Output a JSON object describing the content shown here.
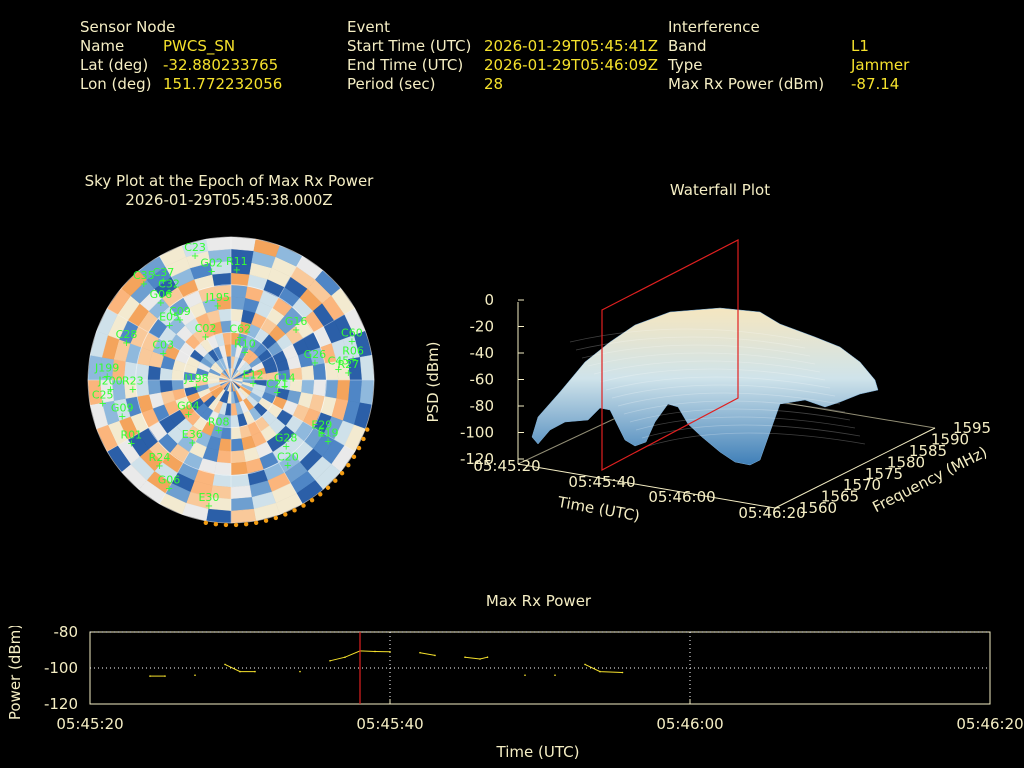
{
  "header": {
    "sensor": {
      "heading": "Sensor Node",
      "rows": [
        {
          "label": "Name",
          "value": "PWCS_SN"
        },
        {
          "label": "Lat (deg)",
          "value": "-32.880233765"
        },
        {
          "label": "Lon (deg)",
          "value": "151.772232056"
        }
      ]
    },
    "event": {
      "heading": "Event",
      "rows": [
        {
          "label": "Start Time (UTC)",
          "value": "2026-01-29T05:45:41Z"
        },
        {
          "label": "End Time (UTC)",
          "value": "2026-01-29T05:46:09Z"
        },
        {
          "label": "Period (sec)",
          "value": "28"
        }
      ]
    },
    "interference": {
      "heading": "Interference",
      "rows": [
        {
          "label": "Band",
          "value": "L1"
        },
        {
          "label": "Type",
          "value": "Jammer"
        },
        {
          "label": "Max Rx Power (dBm)",
          "value": "-87.14"
        }
      ]
    }
  },
  "sky_plot": {
    "title_line1": "Sky Plot at the Epoch of Max Rx Power",
    "title_line2": "2026-01-29T05:45:38.000Z",
    "satellites": [
      {
        "id": "C23",
        "az": 344,
        "el": 8
      },
      {
        "id": "C37",
        "az": 326,
        "el": 14
      },
      {
        "id": "C35",
        "az": 318,
        "el": 8
      },
      {
        "id": "C32",
        "az": 325,
        "el": 22
      },
      {
        "id": "G02",
        "az": 350,
        "el": 20
      },
      {
        "id": "R11",
        "az": 3,
        "el": 20
      },
      {
        "id": "G06",
        "az": 318,
        "el": 24
      },
      {
        "id": "E05",
        "az": 312,
        "el": 38
      },
      {
        "id": "C09",
        "az": 320,
        "el": 40
      },
      {
        "id": "J195",
        "az": 350,
        "el": 42
      },
      {
        "id": "C28",
        "az": 290,
        "el": 20
      },
      {
        "id": "C03",
        "az": 292,
        "el": 44
      },
      {
        "id": "C02",
        "az": 330,
        "el": 58
      },
      {
        "id": "G16",
        "az": 52,
        "el": 38
      },
      {
        "id": "C62",
        "az": 12,
        "el": 62
      },
      {
        "id": "R10",
        "az": 26,
        "el": 70
      },
      {
        "id": "C60",
        "az": 72,
        "el": 10
      },
      {
        "id": "R06",
        "az": 80,
        "el": 12
      },
      {
        "id": "J199",
        "az": 272,
        "el": 12
      },
      {
        "id": "J200",
        "az": 266,
        "el": 14
      },
      {
        "id": "R23",
        "az": 265,
        "el": 28
      },
      {
        "id": "G26",
        "az": 78,
        "el": 36
      },
      {
        "id": "C45",
        "az": 84,
        "el": 22
      },
      {
        "id": "R27",
        "az": 86,
        "el": 16
      },
      {
        "id": "E12",
        "az": 96,
        "el": 76
      },
      {
        "id": "C14",
        "az": 96,
        "el": 56
      },
      {
        "id": "C21",
        "az": 104,
        "el": 60
      },
      {
        "id": "J198",
        "az": 260,
        "el": 68
      },
      {
        "id": "C25",
        "az": 260,
        "el": 8
      },
      {
        "id": "G09",
        "az": 252,
        "el": 18
      },
      {
        "id": "G04",
        "az": 232,
        "el": 56
      },
      {
        "id": "E29",
        "az": 120,
        "el": 24
      },
      {
        "id": "E19",
        "az": 122,
        "el": 18
      },
      {
        "id": "G28",
        "az": 140,
        "el": 36
      },
      {
        "id": "C20",
        "az": 146,
        "el": 26
      },
      {
        "id": "R01",
        "az": 238,
        "el": 16
      },
      {
        "id": "E36",
        "az": 212,
        "el": 44
      },
      {
        "id": "R08",
        "az": 194,
        "el": 58
      },
      {
        "id": "R24",
        "az": 220,
        "el": 20
      },
      {
        "id": "G06b",
        "label": "G06",
        "az": 210,
        "el": 12
      },
      {
        "id": "E30",
        "az": 190,
        "el": 10
      }
    ]
  },
  "waterfall": {
    "title": "Waterfall Plot",
    "zlabel": "PSD (dBm)",
    "xlabel": "Time (UTC)",
    "ylabel": "Frequency (MHz)",
    "z_ticks": [
      "0",
      "-20",
      "-40",
      "-60",
      "-80",
      "-100",
      "-120"
    ],
    "x_ticks": [
      "05:45:20",
      "05:45:40",
      "05:46:00",
      "05:46:20"
    ],
    "y_ticks": [
      "1560",
      "1565",
      "1570",
      "1575",
      "1580",
      "1585",
      "1590",
      "1595"
    ]
  },
  "chart_data": {
    "type": "line",
    "title": "Max Rx Power",
    "xlabel": "Time (UTC)",
    "ylabel": "Power (dBm)",
    "x_ticks": [
      "05:45:20",
      "05:45:40",
      "05:46:00",
      "05:46:20"
    ],
    "y_ticks": [
      "-80",
      "-100",
      "-120"
    ],
    "xlim_sec": [
      0,
      60
    ],
    "ylim": [
      -120,
      -80
    ],
    "marker_sec": 18,
    "series": [
      {
        "values": [
          [
            4,
            -104.5
          ],
          [
            5,
            -104.5
          ],
          [
            7,
            -104
          ],
          [
            9,
            -98
          ],
          [
            10,
            -102
          ],
          [
            11,
            -102
          ],
          [
            14,
            -102
          ],
          [
            16,
            -96
          ],
          [
            17,
            -94
          ],
          [
            18,
            -90.5
          ],
          [
            19,
            -90.8
          ],
          [
            20,
            -91
          ],
          [
            22,
            -91.5
          ],
          [
            23,
            -93
          ],
          [
            25,
            -94
          ],
          [
            26,
            -95
          ],
          [
            26.5,
            -94
          ],
          [
            29,
            -104
          ],
          [
            31,
            -104
          ],
          [
            33,
            -98
          ],
          [
            34,
            -102
          ],
          [
            35.5,
            -102.5
          ]
        ]
      }
    ]
  }
}
